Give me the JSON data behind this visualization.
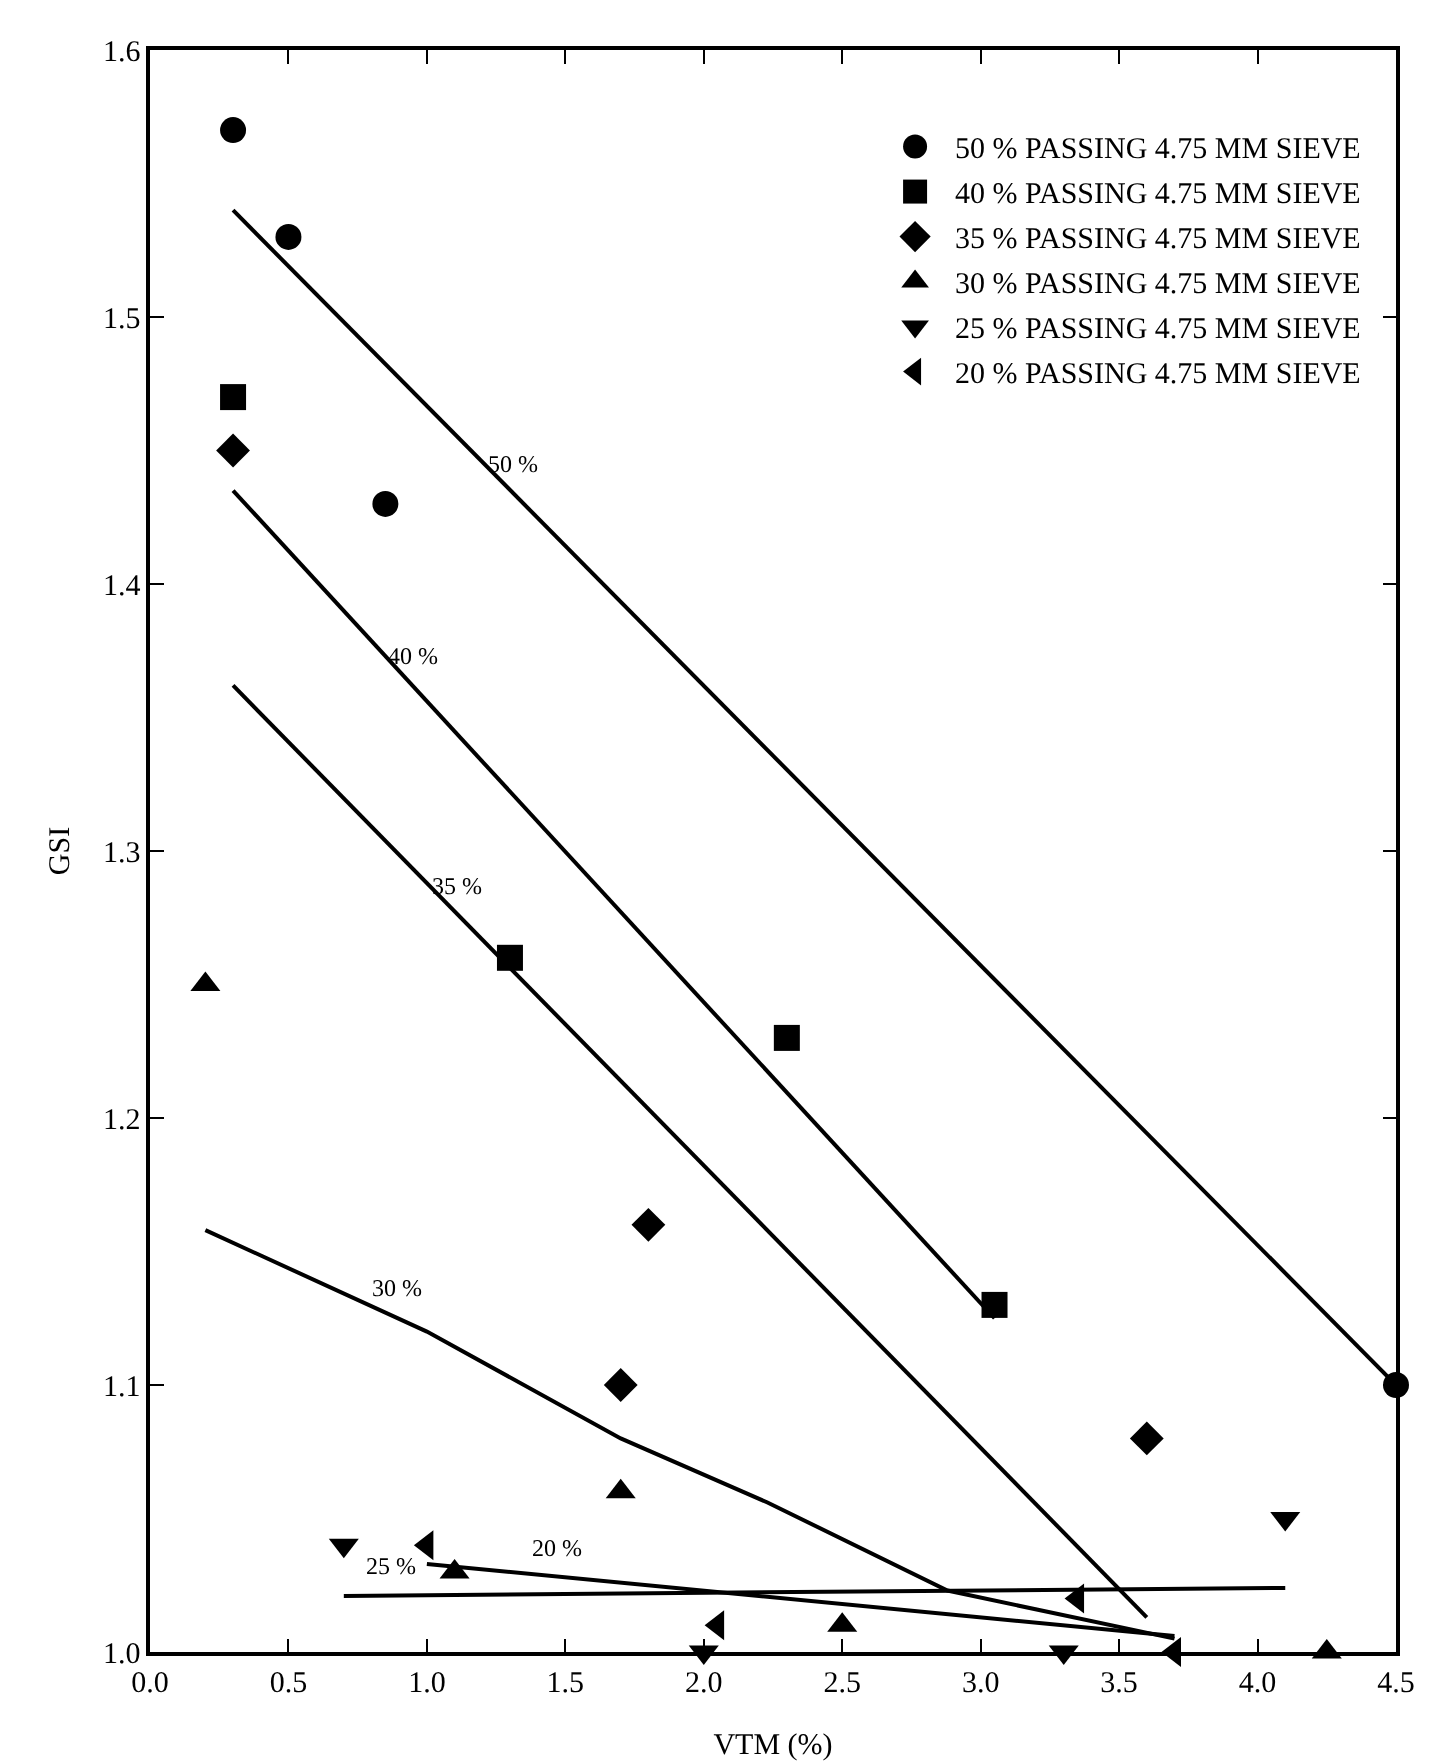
{
  "chart_data": {
    "type": "scatter",
    "xlabel": "VTM (%)",
    "ylabel": "GSI",
    "xlim": [
      0,
      4.5
    ],
    "ylim": [
      1.0,
      1.6
    ],
    "xticks": [
      {
        "value": 0,
        "label": "0.0"
      },
      0.5,
      {
        "value": 1,
        "label": "1.0"
      },
      1.5,
      {
        "value": 2,
        "label": "2.0"
      },
      2.5,
      {
        "value": 3,
        "label": "3.0"
      },
      3.5,
      {
        "value": 4,
        "label": "4.0"
      },
      4.5
    ],
    "yticks": [
      {
        "value": 1,
        "label": "1.0"
      },
      1.1,
      1.2,
      1.3,
      1.4,
      1.5,
      1.6
    ],
    "grid": false,
    "legend": "top right",
    "series": [
      {
        "name": "50 % PASSING 4.75 MM SIEVE",
        "color": "#000000",
        "marker": "circle",
        "x": [
          0.3,
          0.5,
          0.85,
          4.5
        ],
        "values": [
          1.57,
          1.53,
          1.43,
          1.1
        ]
      },
      {
        "name": "40 % PASSING 4.75 MM SIEVE",
        "color": "#000000",
        "marker": "square",
        "x": [
          0.3,
          1.3,
          2.3,
          3.05
        ],
        "values": [
          1.47,
          1.26,
          1.23,
          1.13
        ]
      },
      {
        "name": "35 % PASSING 4.75 MM SIEVE",
        "color": "#000000",
        "marker": "diamond",
        "x": [
          0.3,
          1.7,
          1.8,
          3.6
        ],
        "values": [
          1.45,
          1.1,
          1.16,
          1.08
        ]
      },
      {
        "name": "30 % PASSING 4.75 MM SIEVE",
        "color": "#000000",
        "marker": "triangle",
        "x": [
          0.2,
          1.1,
          1.7,
          2.5,
          4.25
        ],
        "values": [
          1.25,
          1.03,
          1.06,
          1.01,
          1.0
        ]
      },
      {
        "name": "25 % PASSING 4.75 MM SIEVE",
        "color": "#000000",
        "marker": "triangle-down",
        "x": [
          0.7,
          2.0,
          3.3,
          4.1
        ],
        "values": [
          1.04,
          1.0,
          1.0,
          1.05
        ]
      },
      {
        "name": "20 % PASSING 4.75 MM SIEVE",
        "color": "#000000",
        "marker": "triangle-left",
        "x": [
          1.0,
          2.05,
          3.35,
          3.7
        ],
        "values": [
          1.04,
          1.01,
          1.02,
          1.0
        ]
      },
      {
        "type": "line",
        "color": "#000000",
        "line_style": "solid",
        "x": [
          0.3,
          4.5
        ],
        "values": [
          1.54,
          1.1
        ]
      },
      {
        "type": "line",
        "color": "#000000",
        "line_style": "solid",
        "x": [
          0.3,
          3.05
        ],
        "values": [
          1.435,
          1.125
        ]
      },
      {
        "type": "line",
        "color": "#000000",
        "line_style": "solid",
        "x": [
          0.3,
          3.6
        ],
        "values": [
          1.362,
          1.013
        ]
      },
      {
        "type": "line",
        "color": "#000000",
        "line_style": "solid",
        "x": [
          0.2,
          1.0,
          1.7,
          2.23,
          2.88,
          3.7
        ],
        "values": [
          1.158,
          1.12,
          1.08,
          1.056,
          1.023,
          1.005
        ]
      },
      {
        "type": "line",
        "color": "#000000",
        "line_style": "solid",
        "x": [
          0.7,
          4.1
        ],
        "values": [
          1.021,
          1.024
        ]
      },
      {
        "type": "line",
        "color": "#000000",
        "line_style": "solid",
        "x": [
          1.0,
          3.7
        ],
        "values": [
          1.033,
          1.006
        ]
      }
    ],
    "annotations": [
      {
        "text": "50 %",
        "x": 1.31,
        "y": 1.434
      },
      {
        "text": "40 %",
        "x": 0.95,
        "y": 1.362
      },
      {
        "text": "35 %",
        "x": 1.11,
        "y": 1.276
      },
      {
        "text": "30 %",
        "x": 0.89,
        "y": 1.125
      },
      {
        "text": "25 %",
        "x": 0.87,
        "y": 1.021
      },
      {
        "text": "20 %",
        "x": 1.47,
        "y": 1.028
      }
    ]
  }
}
